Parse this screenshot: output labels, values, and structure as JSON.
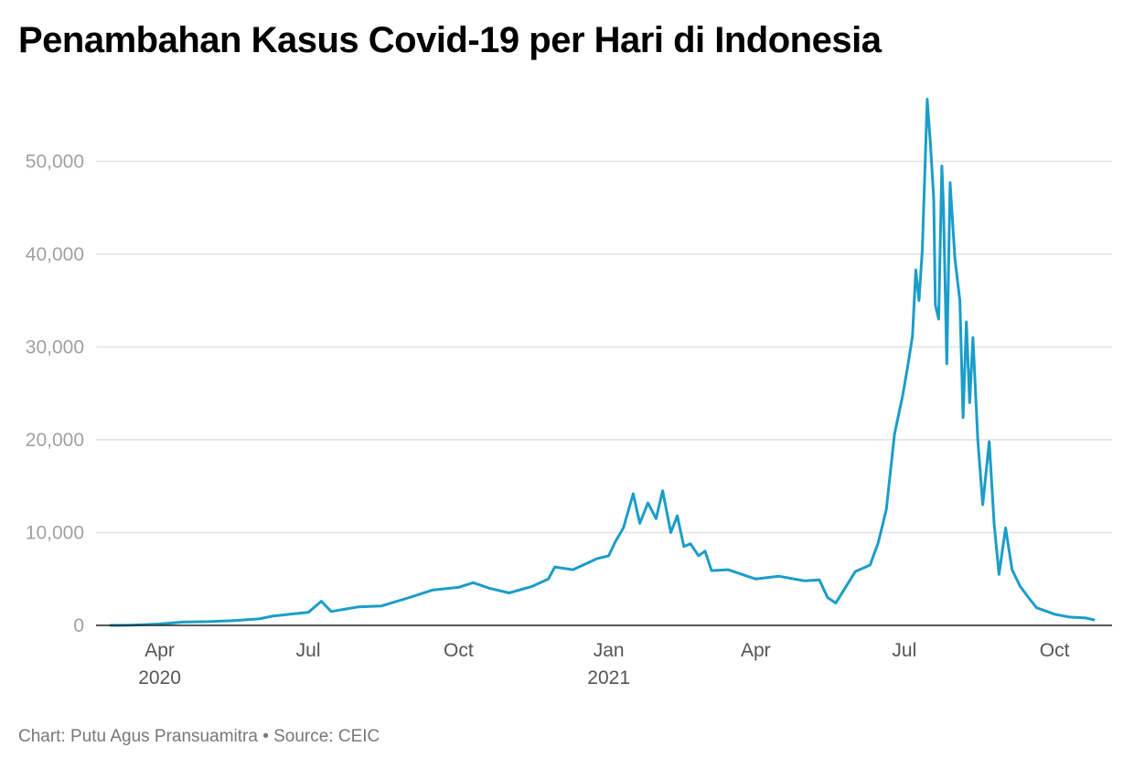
{
  "chart_data": {
    "type": "line",
    "title": "Penambahan Kasus Covid-19 per Hari di Indonesia",
    "xlabel": "",
    "ylabel": "",
    "ylim": [
      0,
      60000
    ],
    "xlim": [
      "2020-03-02",
      "2021-10-25"
    ],
    "y_ticks": [
      0,
      10000,
      20000,
      30000,
      40000,
      50000
    ],
    "y_tick_labels": [
      "0",
      "10,000",
      "20,000",
      "30,000",
      "40,000",
      "50,000"
    ],
    "x_ticks": [
      {
        "date": "2020-04-01",
        "label": "Apr",
        "year": "2020"
      },
      {
        "date": "2020-07-01",
        "label": "Jul",
        "year": ""
      },
      {
        "date": "2020-10-01",
        "label": "Oct",
        "year": ""
      },
      {
        "date": "2021-01-01",
        "label": "Jan",
        "year": "2021"
      },
      {
        "date": "2021-04-01",
        "label": "Apr",
        "year": ""
      },
      {
        "date": "2021-07-01",
        "label": "Jul",
        "year": ""
      },
      {
        "date": "2021-10-01",
        "label": "Oct",
        "year": ""
      }
    ],
    "grid": true,
    "color": "#1a9dc9",
    "series": [
      {
        "name": "",
        "x": [
          "2020-03-02",
          "2020-03-15",
          "2020-04-01",
          "2020-04-15",
          "2020-05-01",
          "2020-05-15",
          "2020-06-01",
          "2020-06-09",
          "2020-06-20",
          "2020-07-01",
          "2020-07-09",
          "2020-07-15",
          "2020-08-01",
          "2020-08-15",
          "2020-09-01",
          "2020-09-15",
          "2020-10-01",
          "2020-10-10",
          "2020-10-20",
          "2020-11-01",
          "2020-11-15",
          "2020-11-25",
          "2020-11-29",
          "2020-12-10",
          "2020-12-20",
          "2020-12-25",
          "2021-01-01",
          "2021-01-05",
          "2021-01-10",
          "2021-01-16",
          "2021-01-20",
          "2021-01-25",
          "2021-01-30",
          "2021-02-03",
          "2021-02-08",
          "2021-02-12",
          "2021-02-16",
          "2021-02-20",
          "2021-02-25",
          "2021-03-01",
          "2021-03-05",
          "2021-03-15",
          "2021-04-01",
          "2021-04-15",
          "2021-05-01",
          "2021-05-10",
          "2021-05-15",
          "2021-05-20",
          "2021-06-01",
          "2021-06-10",
          "2021-06-15",
          "2021-06-20",
          "2021-06-25",
          "2021-06-30",
          "2021-07-03",
          "2021-07-06",
          "2021-07-08",
          "2021-07-10",
          "2021-07-12",
          "2021-07-15",
          "2021-07-17",
          "2021-07-19",
          "2021-07-20",
          "2021-07-22",
          "2021-07-24",
          "2021-07-25",
          "2021-07-27",
          "2021-07-29",
          "2021-08-01",
          "2021-08-04",
          "2021-08-06",
          "2021-08-08",
          "2021-08-10",
          "2021-08-12",
          "2021-08-15",
          "2021-08-18",
          "2021-08-22",
          "2021-08-25",
          "2021-08-28",
          "2021-09-01",
          "2021-09-05",
          "2021-09-10",
          "2021-09-15",
          "2021-09-20",
          "2021-10-01",
          "2021-10-10",
          "2021-10-20",
          "2021-10-25"
        ],
        "y": [
          2,
          20,
          150,
          350,
          400,
          500,
          700,
          1000,
          1200,
          1400,
          2600,
          1500,
          2000,
          2100,
          3000,
          3800,
          4100,
          4600,
          4000,
          3500,
          4200,
          5000,
          6300,
          6000,
          6800,
          7200,
          7500,
          9000,
          10500,
          14200,
          11000,
          13200,
          11500,
          14500,
          10000,
          11800,
          8500,
          8800,
          7500,
          8000,
          5900,
          6000,
          5000,
          5300,
          4800,
          4900,
          3000,
          2400,
          5800,
          6500,
          8900,
          12500,
          20600,
          24800,
          27800,
          31200,
          38300,
          35000,
          40400,
          56700,
          51900,
          46000,
          34500,
          33000,
          49500,
          45000,
          28200,
          47700,
          39500,
          35000,
          22400,
          32700,
          24000,
          31000,
          20000,
          13000,
          19800,
          10900,
          5500,
          10500,
          6000,
          4200,
          3000,
          1900,
          1200,
          900,
          800,
          600
        ]
      }
    ]
  },
  "footer": {
    "credit": "Chart: Putu Agus Pransuamitra • Source: CEIC"
  }
}
